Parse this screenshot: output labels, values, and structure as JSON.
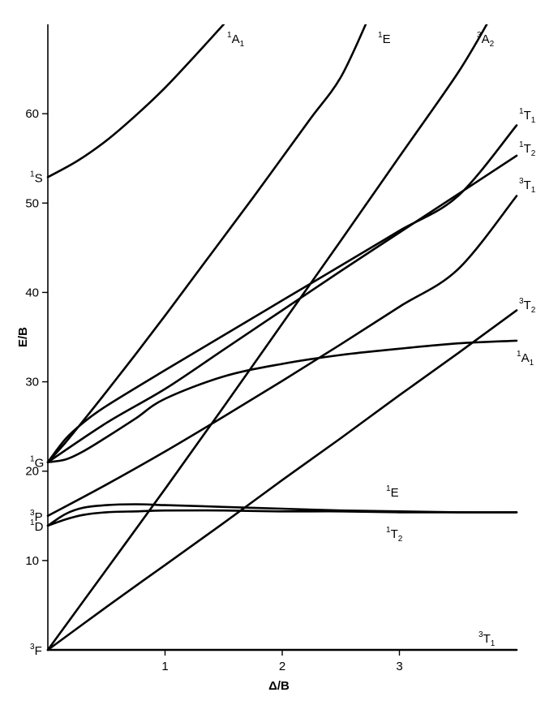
{
  "chart_data": {
    "type": "line",
    "title": "",
    "xlabel": "Δ/B",
    "ylabel": "E/B",
    "xlim": [
      0,
      4
    ],
    "ylim": [
      0,
      70
    ],
    "xticks": [
      1,
      2,
      3
    ],
    "yticks": [
      10,
      20,
      30,
      40,
      50,
      60
    ],
    "grid": false,
    "legend": "none",
    "left_labels": [
      {
        "id": "3F",
        "sup": "3",
        "base": "F",
        "y": 0
      },
      {
        "id": "1D",
        "sup": "1",
        "base": "D",
        "y": 13.9
      },
      {
        "id": "3P",
        "sup": "3",
        "base": "P",
        "y": 15.0
      },
      {
        "id": "1G",
        "sup": "1",
        "base": "G",
        "y": 21.0
      },
      {
        "id": "1S",
        "sup": "1",
        "base": "S",
        "y": 52.9
      }
    ],
    "series": [
      {
        "id": "1A1_upper",
        "sup": "1",
        "base": "A",
        "sub": "1",
        "x": [
          0,
          0.25,
          0.5,
          0.75,
          1.0,
          1.25,
          1.5,
          1.55
        ],
        "y": [
          52.9,
          54.7,
          57.0,
          59.8,
          62.9,
          66.4,
          70.0,
          70.8
        ]
      },
      {
        "id": "1E_steep",
        "sup": "1",
        "base": "E",
        "x": [
          0,
          0.15,
          0.3,
          0.5,
          0.75,
          1.0,
          1.25,
          1.5,
          1.75,
          2.0,
          2.25,
          2.5,
          2.74
        ],
        "y": [
          21.0,
          23.2,
          25.6,
          28.9,
          33.1,
          37.4,
          41.8,
          46.2,
          50.6,
          55.1,
          59.6,
          64.1,
          70.8
        ]
      },
      {
        "id": "3A2",
        "sup": "3",
        "base": "A",
        "sub": "2",
        "x": [
          0,
          0.5,
          1.0,
          1.5,
          2.0,
          2.5,
          3.0,
          3.5,
          3.78
        ],
        "y": [
          0,
          9.0,
          18.0,
          27.2,
          36.5,
          45.8,
          55.2,
          64.6,
          70.8
        ]
      },
      {
        "id": "1T1",
        "sup": "1",
        "base": "T",
        "sub": "1",
        "x": [
          0,
          0.15,
          0.3,
          0.5,
          1.0,
          1.5,
          2.0,
          2.5,
          3.0,
          3.5,
          4.0
        ],
        "y": [
          21.0,
          23.6,
          25.4,
          27.3,
          31.3,
          35.2,
          39.1,
          43.0,
          46.9,
          50.8,
          58.7
        ]
      },
      {
        "id": "1T2_upper",
        "sup": "1",
        "base": "T",
        "sub": "2",
        "x": [
          0,
          0.5,
          1.0,
          1.5,
          2.0,
          2.5,
          3.0,
          3.5,
          4.0
        ],
        "y": [
          21.0,
          25.4,
          29.2,
          33.6,
          38.0,
          42.4,
          46.7,
          51.0,
          55.3
        ]
      },
      {
        "id": "3T1_upper",
        "sup": "3",
        "base": "T",
        "sub": "1",
        "x": [
          0,
          0.5,
          1.0,
          1.5,
          2.0,
          2.5,
          3.0,
          3.5,
          4.0
        ],
        "y": [
          15.0,
          18.5,
          22.2,
          26.1,
          30.1,
          34.2,
          38.4,
          42.6,
          50.8
        ]
      },
      {
        "id": "3T2",
        "sup": "3",
        "base": "T",
        "sub": "2",
        "x": [
          0,
          0.5,
          1.0,
          1.5,
          2.0,
          2.5,
          3.0,
          3.5,
          4.0
        ],
        "y": [
          0,
          4.8,
          9.5,
          14.2,
          19.0,
          23.7,
          28.5,
          33.2,
          38.0
        ]
      },
      {
        "id": "1A1_lower",
        "sup": "1",
        "base": "A",
        "sub": "1",
        "x": [
          0,
          0.15,
          0.3,
          0.5,
          0.75,
          1.0,
          1.5,
          2.0,
          2.5,
          3.0,
          3.5,
          4.0
        ],
        "y": [
          21.0,
          21.3,
          22.2,
          23.8,
          25.9,
          28.1,
          30.6,
          32.0,
          33.0,
          33.7,
          34.3,
          34.6
        ]
      },
      {
        "id": "1E_flat",
        "sup": "1",
        "base": "E",
        "x": [
          0,
          0.15,
          0.3,
          0.5,
          0.75,
          1.0,
          1.5,
          2.0,
          2.5,
          3.0,
          3.5,
          4.0
        ],
        "y": [
          13.9,
          15.2,
          15.9,
          16.2,
          16.3,
          16.2,
          16.0,
          15.8,
          15.6,
          15.5,
          15.4,
          15.4
        ]
      },
      {
        "id": "1T2_lower",
        "sup": "1",
        "base": "T",
        "sub": "2",
        "x": [
          0,
          0.15,
          0.3,
          0.5,
          0.75,
          1.0,
          1.5,
          2.0,
          2.5,
          3.0,
          3.5,
          4.0
        ],
        "y": [
          13.9,
          14.6,
          15.1,
          15.4,
          15.5,
          15.6,
          15.6,
          15.5,
          15.5,
          15.4,
          15.4,
          15.4
        ]
      },
      {
        "id": "3T1_ground",
        "sup": "3",
        "base": "T",
        "sub": "1",
        "x": [
          0,
          4.0
        ],
        "y": [
          0,
          0
        ]
      }
    ],
    "right_labels": [
      {
        "id": "1A1_upper",
        "sup": "1",
        "base": "A",
        "sub": "1"
      },
      {
        "id": "1E_steep",
        "sup": "1",
        "base": "E"
      },
      {
        "id": "3A2",
        "sup": "3",
        "base": "A",
        "sub": "2"
      },
      {
        "id": "1T1",
        "sup": "1",
        "base": "T",
        "sub": "1"
      },
      {
        "id": "1T2_upper",
        "sup": "1",
        "base": "T",
        "sub": "2"
      },
      {
        "id": "3T1_upper",
        "sup": "3",
        "base": "T",
        "sub": "1"
      },
      {
        "id": "3T2",
        "sup": "3",
        "base": "T",
        "sub": "2"
      },
      {
        "id": "1A1_lower",
        "sup": "1",
        "base": "A",
        "sub": "1"
      },
      {
        "id": "1E_flat",
        "sup": "1",
        "base": "E"
      },
      {
        "id": "1T2_lower",
        "sup": "1",
        "base": "T",
        "sub": "2"
      },
      {
        "id": "3T1_ground",
        "sup": "3",
        "base": "T",
        "sub": "1"
      }
    ]
  }
}
